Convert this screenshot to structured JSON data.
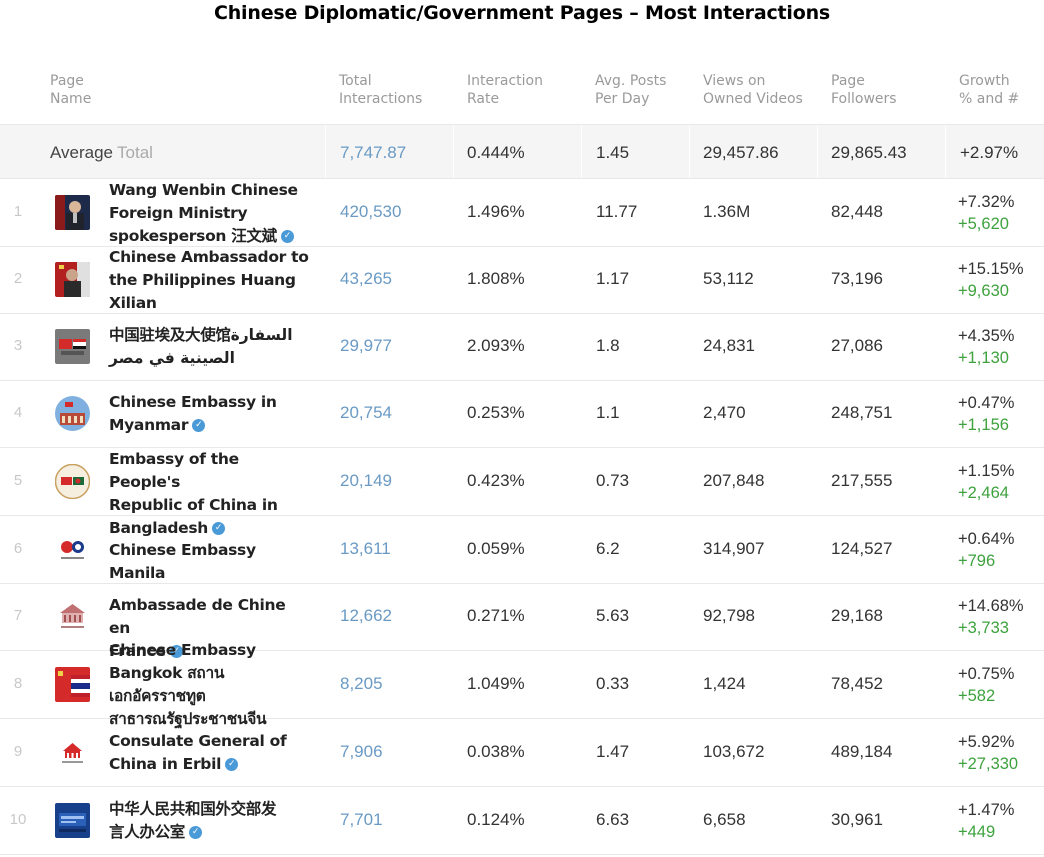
{
  "title": "Chinese Diplomatic/Government Pages – Most Interactions",
  "columns": {
    "page_name": [
      "Page",
      "Name"
    ],
    "total_interactions": [
      "Total",
      "Interactions"
    ],
    "interaction_rate": [
      "Interaction",
      "Rate"
    ],
    "avg_posts": [
      "Avg. Posts",
      "Per Day"
    ],
    "views": [
      "Views on",
      "Owned Videos"
    ],
    "followers": [
      "Page",
      "Followers"
    ],
    "growth": [
      "Growth",
      "% and #"
    ]
  },
  "average": {
    "label": "Average",
    "sublabel": "Total",
    "total_interactions": "7,747.87",
    "interaction_rate": "0.444%",
    "avg_posts": "1.45",
    "views": "29,457.86",
    "followers": "29,865.43",
    "growth_pct": "+2.97%"
  },
  "rows": [
    {
      "rank": "1",
      "name_lines": [
        "Wang Wenbin Chinese",
        "Foreign Ministry",
        "spokesperson 汪文斌"
      ],
      "verified": true,
      "total": "420,530",
      "rate": "1.496%",
      "posts": "11.77",
      "views": "1.36M",
      "followers": "82,448",
      "growth_pct": "+7.32%",
      "growth_num": "+5,620",
      "avatar": "person-photo"
    },
    {
      "rank": "2",
      "name_lines": [
        "Chinese Ambassador to",
        "the Philippines Huang",
        "Xilian"
      ],
      "verified": false,
      "total": "43,265",
      "rate": "1.808%",
      "posts": "1.17",
      "views": "53,112",
      "followers": "73,196",
      "growth_pct": "+15.15%",
      "growth_num": "+9,630",
      "avatar": "person-flag-photo"
    },
    {
      "rank": "3",
      "name_lines": [
        "中国驻埃及大使馆السفارة",
        "الصينية في مصر"
      ],
      "verified": false,
      "total": "29,977",
      "rate": "2.093%",
      "posts": "1.8",
      "views": "24,831",
      "followers": "27,086",
      "growth_pct": "+4.35%",
      "growth_num": "+1,130",
      "avatar": "flags-emblem"
    },
    {
      "rank": "4",
      "name_lines": [
        "Chinese Embassy in",
        "Myanmar"
      ],
      "verified": true,
      "total": "20,754",
      "rate": "0.253%",
      "posts": "1.1",
      "views": "2,470",
      "followers": "248,751",
      "growth_pct": "+0.47%",
      "growth_num": "+1,156",
      "avatar": "building-round"
    },
    {
      "rank": "5",
      "name_lines": [
        "Embassy of the People's",
        "Republic of China in",
        "Bangladesh"
      ],
      "verified": true,
      "total": "20,149",
      "rate": "0.423%",
      "posts": "0.73",
      "views": "207,848",
      "followers": "217,555",
      "growth_pct": "+1.15%",
      "growth_num": "+2,464",
      "avatar": "flags-round"
    },
    {
      "rank": "6",
      "name_lines": [
        "Chinese Embassy Manila"
      ],
      "verified": false,
      "total": "13,611",
      "rate": "0.059%",
      "posts": "6.2",
      "views": "314,907",
      "followers": "124,527",
      "growth_pct": "+0.64%",
      "growth_num": "+796",
      "avatar": "logo-circles"
    },
    {
      "rank": "7",
      "name_lines": [
        "Ambassade de Chine en",
        "France"
      ],
      "verified": true,
      "total": "12,662",
      "rate": "0.271%",
      "posts": "5.63",
      "views": "92,798",
      "followers": "29,168",
      "growth_pct": "+14.68%",
      "growth_num": "+3,733",
      "avatar": "building-logo"
    },
    {
      "rank": "8",
      "name_lines": [
        "Chinese Embassy",
        "Bangkok สถาน",
        "เอกอัครราชทูต",
        "สาธารณรัฐประชาชนจีน"
      ],
      "verified": false,
      "total": "8,205",
      "rate": "1.049%",
      "posts": "0.33",
      "views": "1,424",
      "followers": "78,452",
      "growth_pct": "+0.75%",
      "growth_num": "+582",
      "avatar": "flags-photo"
    },
    {
      "rank": "9",
      "name_lines": [
        "Consulate General of",
        "China in Erbil"
      ],
      "verified": true,
      "total": "7,906",
      "rate": "0.038%",
      "posts": "1.47",
      "views": "103,672",
      "followers": "489,184",
      "growth_pct": "+5.92%",
      "growth_num": "+27,330",
      "avatar": "emblem-logo"
    },
    {
      "rank": "10",
      "name_lines": [
        "中华人民共和国外交部发",
        "言人办公室"
      ],
      "verified": true,
      "total": "7,701",
      "rate": "0.124%",
      "posts": "6.63",
      "views": "6,658",
      "followers": "30,961",
      "growth_pct": "+1.47%",
      "growth_num": "+449",
      "avatar": "blue-screen"
    }
  ]
}
